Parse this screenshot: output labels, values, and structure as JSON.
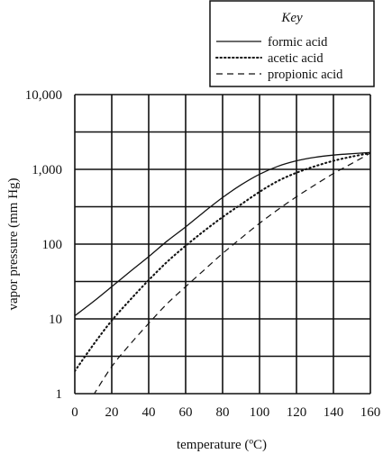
{
  "chart_data": {
    "type": "line",
    "xlabel": "temperature (ºC)",
    "ylabel": "vapor pressure (mm Hg)",
    "y_scale": "log",
    "xlim": [
      0,
      160
    ],
    "ylim": [
      1,
      10000
    ],
    "x_ticks": [
      "0",
      "20",
      "40",
      "60",
      "80",
      "100",
      "120",
      "140",
      "160"
    ],
    "y_ticks": [
      "1",
      "10",
      "100",
      "1,000",
      "10,000"
    ],
    "x_tick_values": [
      0,
      20,
      40,
      60,
      80,
      100,
      120,
      140,
      160
    ],
    "y_tick_values": [
      1,
      10,
      100,
      1000,
      10000
    ],
    "grid": true,
    "legend": {
      "title": "Key",
      "placement": "top-right, above plot"
    },
    "series": [
      {
        "name": "formic acid",
        "style": "solid",
        "x": [
          0,
          10,
          20,
          30,
          40,
          50,
          60,
          70,
          80,
          90,
          100,
          110,
          120,
          130,
          140,
          150,
          160
        ],
        "y": [
          11,
          17,
          27,
          43,
          68,
          110,
          170,
          270,
          420,
          620,
          860,
          1100,
          1300,
          1450,
          1550,
          1620,
          1680
        ]
      },
      {
        "name": "acetic acid",
        "style": "dotted",
        "x": [
          0,
          10,
          20,
          30,
          40,
          50,
          60,
          70,
          80,
          90,
          100,
          110,
          120,
          130,
          140,
          150,
          160
        ],
        "y": [
          2,
          4.5,
          9.5,
          18,
          33,
          58,
          95,
          150,
          230,
          340,
          500,
          700,
          900,
          1100,
          1300,
          1480,
          1650
        ]
      },
      {
        "name": "propionic acid",
        "style": "dashed",
        "x": [
          10,
          20,
          30,
          40,
          50,
          60,
          70,
          80,
          90,
          100,
          110,
          120,
          130,
          140,
          150,
          160
        ],
        "y": [
          0.95,
          2.3,
          4.6,
          8.7,
          16,
          27,
          45,
          75,
          120,
          190,
          290,
          430,
          620,
          880,
          1200,
          1650
        ]
      }
    ]
  }
}
